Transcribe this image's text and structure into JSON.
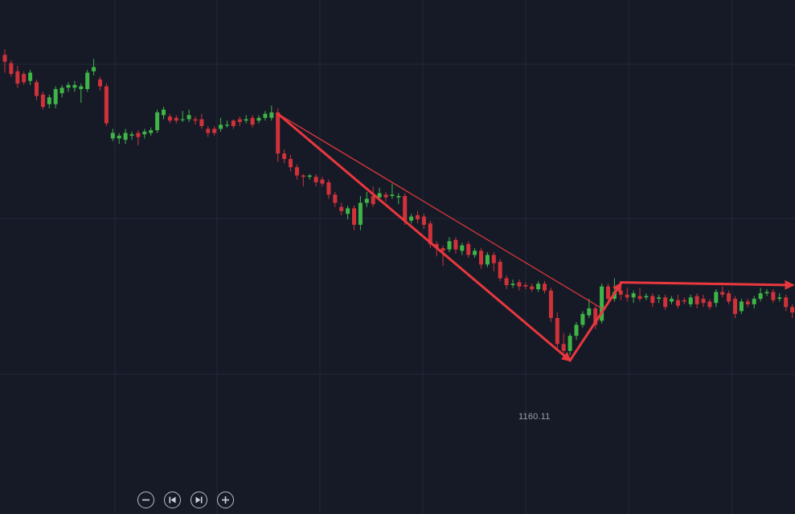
{
  "chart_data": {
    "type": "candlestick",
    "title": "",
    "xlabel": "",
    "ylabel": "",
    "grid": true,
    "ylim": [
      1155,
      1230
    ],
    "colors": {
      "up": "#3fb548",
      "down": "#d0323a",
      "background": "#161a27",
      "grid": "#22273a",
      "annotation": "#e8383d",
      "live_dot": "#4cff4c"
    },
    "candles": [
      [
        1222.0,
        1221.0,
        1222.8,
        1219.4
      ],
      [
        1220.8,
        1219.2,
        1221.2,
        1218.8
      ],
      [
        1219.6,
        1217.8,
        1220.4,
        1217.2
      ],
      [
        1219.2,
        1218.0,
        1219.6,
        1217.6
      ],
      [
        1218.2,
        1219.4,
        1219.8,
        1217.6
      ],
      [
        1218.0,
        1216.0,
        1218.4,
        1215.4
      ],
      [
        1216.2,
        1214.4,
        1216.6,
        1214.0
      ],
      [
        1214.8,
        1215.8,
        1216.2,
        1214.2
      ],
      [
        1214.8,
        1217.0,
        1217.4,
        1214.2
      ],
      [
        1216.4,
        1217.2,
        1217.6,
        1215.8
      ],
      [
        1217.2,
        1217.6,
        1218.0,
        1216.6
      ],
      [
        1217.2,
        1217.6,
        1218.2,
        1216.6
      ],
      [
        1217.0,
        1217.4,
        1217.8,
        1215.0
      ],
      [
        1217.0,
        1219.4,
        1219.8,
        1216.6
      ],
      [
        1219.6,
        1220.2,
        1221.4,
        1219.0
      ],
      [
        1218.4,
        1217.4,
        1218.8,
        1216.8
      ],
      [
        1217.4,
        1212.0,
        1217.8,
        1211.6
      ],
      [
        1209.8,
        1210.6,
        1211.2,
        1209.4
      ],
      [
        1209.8,
        1210.2,
        1210.6,
        1209.0
      ],
      [
        1209.6,
        1210.6,
        1211.2,
        1209.0
      ],
      [
        1210.2,
        1210.4,
        1210.8,
        1209.6
      ],
      [
        1210.6,
        1210.0,
        1211.0,
        1208.8
      ],
      [
        1210.4,
        1210.8,
        1211.2,
        1209.8
      ],
      [
        1210.6,
        1211.0,
        1211.4,
        1210.2
      ],
      [
        1211.0,
        1213.6,
        1214.0,
        1210.6
      ],
      [
        1213.2,
        1214.0,
        1214.4,
        1212.6
      ],
      [
        1213.0,
        1212.4,
        1213.4,
        1212.0
      ],
      [
        1212.8,
        1212.4,
        1213.2,
        1212.0
      ],
      [
        1212.6,
        1212.6,
        1213.8,
        1212.2
      ],
      [
        1212.6,
        1213.2,
        1214.0,
        1212.2
      ],
      [
        1212.6,
        1212.4,
        1213.0,
        1211.8
      ],
      [
        1212.6,
        1211.6,
        1213.4,
        1211.2
      ],
      [
        1211.2,
        1210.6,
        1211.6,
        1210.0
      ],
      [
        1211.2,
        1210.6,
        1211.6,
        1210.2
      ],
      [
        1211.2,
        1211.8,
        1212.8,
        1210.8
      ],
      [
        1211.8,
        1211.8,
        1212.4,
        1211.4
      ],
      [
        1212.4,
        1211.6,
        1212.6,
        1211.2
      ],
      [
        1212.6,
        1212.2,
        1213.0,
        1211.6
      ],
      [
        1212.4,
        1212.6,
        1213.2,
        1212.0
      ],
      [
        1212.8,
        1211.8,
        1213.2,
        1211.4
      ],
      [
        1212.4,
        1212.8,
        1213.2,
        1212.0
      ],
      [
        1212.8,
        1213.4,
        1213.8,
        1212.4
      ],
      [
        1212.8,
        1213.6,
        1214.6,
        1212.4
      ],
      [
        1213.6,
        1207.6,
        1214.2,
        1206.4
      ],
      [
        1207.6,
        1206.8,
        1208.2,
        1206.2
      ],
      [
        1206.8,
        1205.6,
        1207.4,
        1205.0
      ],
      [
        1205.6,
        1204.4,
        1206.0,
        1203.8
      ],
      [
        1204.4,
        1204.2,
        1204.6,
        1202.8
      ],
      [
        1204.2,
        1204.4,
        1204.6,
        1203.8
      ],
      [
        1204.2,
        1203.4,
        1204.6,
        1202.8
      ],
      [
        1203.8,
        1203.2,
        1204.2,
        1202.8
      ],
      [
        1203.4,
        1201.6,
        1203.8,
        1201.0
      ],
      [
        1201.6,
        1200.4,
        1202.0,
        1199.8
      ],
      [
        1199.8,
        1199.2,
        1200.4,
        1198.6
      ],
      [
        1198.8,
        1199.6,
        1200.0,
        1198.0
      ],
      [
        1199.6,
        1197.2,
        1200.0,
        1196.4
      ],
      [
        1197.2,
        1200.4,
        1201.4,
        1196.4
      ],
      [
        1200.4,
        1201.0,
        1202.0,
        1199.8
      ],
      [
        1201.4,
        1200.2,
        1202.8,
        1199.8
      ],
      [
        1201.2,
        1201.8,
        1202.6,
        1200.6
      ],
      [
        1201.6,
        1201.2,
        1202.0,
        1200.6
      ],
      [
        1201.4,
        1201.6,
        1203.2,
        1201.0
      ],
      [
        1201.2,
        1201.4,
        1201.8,
        1200.2
      ],
      [
        1201.4,
        1197.8,
        1201.8,
        1197.2
      ],
      [
        1197.8,
        1198.4,
        1198.8,
        1197.4
      ],
      [
        1198.6,
        1198.0,
        1199.2,
        1197.4
      ],
      [
        1198.4,
        1197.2,
        1198.8,
        1196.6
      ],
      [
        1197.4,
        1194.4,
        1197.8,
        1193.8
      ],
      [
        1194.4,
        1193.8,
        1194.8,
        1192.6
      ],
      [
        1193.8,
        1193.4,
        1194.2,
        1191.2
      ],
      [
        1193.6,
        1194.8,
        1195.4,
        1193.2
      ],
      [
        1195.0,
        1193.6,
        1195.4,
        1193.0
      ],
      [
        1193.4,
        1194.2,
        1194.6,
        1192.8
      ],
      [
        1194.4,
        1192.8,
        1194.8,
        1192.4
      ],
      [
        1192.8,
        1193.4,
        1193.8,
        1192.4
      ],
      [
        1193.4,
        1191.4,
        1193.8,
        1190.8
      ],
      [
        1191.4,
        1192.8,
        1193.2,
        1191.0
      ],
      [
        1192.8,
        1191.6,
        1193.2,
        1190.4
      ],
      [
        1191.8,
        1189.4,
        1192.2,
        1189.0
      ],
      [
        1189.4,
        1188.4,
        1189.8,
        1187.8
      ],
      [
        1188.4,
        1188.6,
        1189.2,
        1188.0
      ],
      [
        1188.8,
        1188.2,
        1189.2,
        1187.6
      ],
      [
        1188.4,
        1188.2,
        1188.8,
        1187.8
      ],
      [
        1188.2,
        1187.8,
        1188.6,
        1187.4
      ],
      [
        1187.8,
        1188.6,
        1189.0,
        1187.4
      ],
      [
        1188.6,
        1187.6,
        1189.0,
        1187.2
      ],
      [
        1187.6,
        1183.6,
        1188.0,
        1183.0
      ],
      [
        1183.6,
        1179.8,
        1184.4,
        1179.2
      ],
      [
        1179.8,
        1178.8,
        1181.4,
        1177.6
      ],
      [
        1178.8,
        1181.0,
        1181.4,
        1178.2
      ],
      [
        1181.0,
        1182.6,
        1183.0,
        1180.4
      ],
      [
        1182.6,
        1184.2,
        1184.6,
        1182.2
      ],
      [
        1184.0,
        1185.0,
        1186.4,
        1183.6
      ],
      [
        1185.0,
        1182.6,
        1185.4,
        1182.0
      ],
      [
        1183.2,
        1188.2,
        1188.6,
        1182.8
      ],
      [
        1188.2,
        1186.4,
        1188.6,
        1185.8
      ],
      [
        1186.4,
        1187.4,
        1189.4,
        1186.0
      ],
      [
        1187.6,
        1187.0,
        1188.0,
        1186.2
      ],
      [
        1187.0,
        1186.6,
        1188.0,
        1186.0
      ],
      [
        1186.6,
        1187.2,
        1187.6,
        1185.8
      ],
      [
        1186.8,
        1186.4,
        1188.0,
        1186.0
      ],
      [
        1186.6,
        1186.8,
        1187.2,
        1186.2
      ],
      [
        1186.8,
        1185.8,
        1187.2,
        1185.2
      ],
      [
        1186.4,
        1186.6,
        1187.0,
        1185.8
      ],
      [
        1186.6,
        1185.2,
        1187.0,
        1184.8
      ],
      [
        1186.0,
        1186.4,
        1186.8,
        1185.6
      ],
      [
        1186.2,
        1185.4,
        1187.0,
        1185.0
      ],
      [
        1186.2,
        1186.0,
        1186.6,
        1185.6
      ],
      [
        1185.6,
        1186.6,
        1187.0,
        1185.2
      ],
      [
        1186.8,
        1185.6,
        1187.2,
        1185.0
      ],
      [
        1186.4,
        1185.8,
        1187.0,
        1185.2
      ],
      [
        1186.0,
        1185.2,
        1186.4,
        1184.8
      ],
      [
        1185.8,
        1187.4,
        1187.8,
        1185.2
      ],
      [
        1187.4,
        1187.0,
        1188.2,
        1186.6
      ],
      [
        1187.2,
        1186.0,
        1187.6,
        1185.6
      ],
      [
        1186.4,
        1184.2,
        1186.8,
        1183.6
      ],
      [
        1184.6,
        1186.0,
        1186.4,
        1184.2
      ],
      [
        1186.0,
        1185.6,
        1186.4,
        1185.2
      ],
      [
        1185.6,
        1186.4,
        1186.8,
        1185.0
      ],
      [
        1186.4,
        1187.2,
        1188.0,
        1186.0
      ],
      [
        1187.2,
        1187.4,
        1187.8,
        1186.8
      ],
      [
        1187.4,
        1186.2,
        1187.8,
        1185.8
      ],
      [
        1186.4,
        1186.6,
        1187.2,
        1186.0
      ],
      [
        1186.6,
        1185.2,
        1187.0,
        1184.6
      ],
      [
        1185.2,
        1184.4,
        1185.6,
        1183.6
      ],
      [
        1184.4,
        1181.2,
        1184.8,
        1180.6
      ],
      [
        1181.2,
        1181.6,
        1182.6,
        1180.6
      ],
      [
        1181.6,
        1183.0,
        1183.4,
        1181.2
      ],
      [
        1183.2,
        1184.2,
        1185.8,
        1182.8
      ],
      [
        1183.6,
        1187.0,
        1188.0,
        1183.2
      ],
      [
        1186.8,
        1186.4,
        1187.2,
        1185.8
      ],
      [
        1186.2,
        1186.4,
        1188.0,
        1185.8
      ]
    ],
    "annotations": [
      {
        "type": "segment",
        "from": [
          43,
          1213.4
        ],
        "to": [
          94,
          1185.0
        ],
        "style": "thin"
      },
      {
        "type": "arrow",
        "from": [
          43,
          1213.4
        ],
        "to": [
          89,
          1177.4
        ],
        "style": "bold"
      },
      {
        "type": "arrow",
        "from": [
          89,
          1177.4
        ],
        "to": [
          97,
          1188.6
        ],
        "style": "bold"
      },
      {
        "type": "arrow",
        "from": [
          97,
          1188.8
        ],
        "to": [
          137,
          1188.4
        ],
        "style": "bold"
      }
    ],
    "low_label": "1160.11"
  },
  "controls": {
    "zoom_out": "minus-icon",
    "go_start": "skip-back-icon",
    "go_end": "skip-forward-icon",
    "zoom_in": "plus-icon"
  }
}
